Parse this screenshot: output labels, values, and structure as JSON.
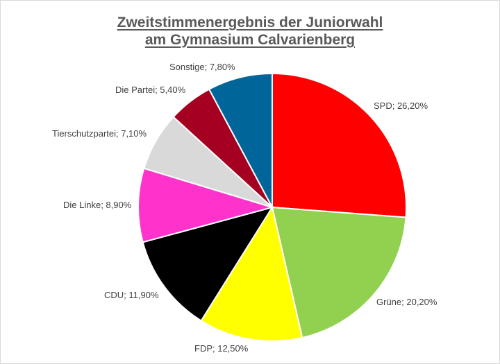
{
  "chart_data": {
    "type": "pie",
    "title": "Zweitstimmenergebnis der Juniorwahl am Gymnasium Calvarienberg",
    "title_lines": [
      "Zweitstimmenergebnis der Juniorwahl",
      "am Gymnasium Calvarienberg"
    ],
    "slices": [
      {
        "name": "SPD",
        "value": 26.2,
        "label": "SPD; 26,20%",
        "color": "#ff0000"
      },
      {
        "name": "Grüne",
        "value": 20.2,
        "label": "Grüne; 20,20%",
        "color": "#92d050"
      },
      {
        "name": "FDP",
        "value": 12.5,
        "label": "FDP; 12,50%",
        "color": "#ffff00"
      },
      {
        "name": "CDU",
        "value": 11.9,
        "label": "CDU; 11,90%",
        "color": "#000000"
      },
      {
        "name": "Die Linke",
        "value": 8.9,
        "label": "Die Linke; 8,90%",
        "color": "#ff33cc"
      },
      {
        "name": "Tierschutzpartei",
        "value": 7.1,
        "label": "Tierschutzpartei; 7,10%",
        "color": "#d9d9d9"
      },
      {
        "name": "Die Partei",
        "value": 5.4,
        "label": "Die Partei; 5,40%",
        "color": "#a50021"
      },
      {
        "name": "Sonstige",
        "value": 7.8,
        "label": "Sonstige; 7,80%",
        "color": "#006699"
      }
    ],
    "legend": "none",
    "start_angle": "12 o'clock",
    "direction": "clockwise"
  }
}
